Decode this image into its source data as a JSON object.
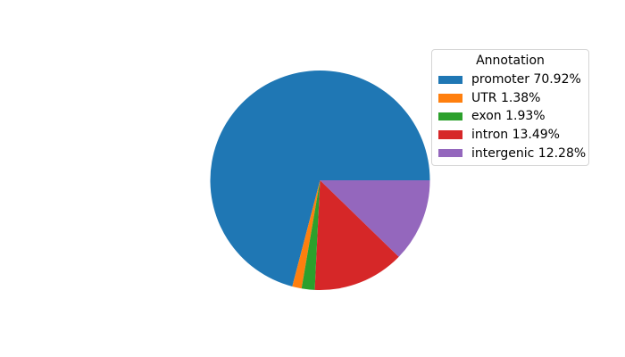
{
  "chart_data": {
    "type": "pie",
    "legend_title": "Annotation",
    "legend_position": "upper right",
    "start_angle": 0,
    "counterclockwise": true,
    "slices": [
      {
        "label": "promoter",
        "pct": 70.92,
        "color": "#1f77b4",
        "legend_label": "promoter 70.92%"
      },
      {
        "label": "UTR",
        "pct": 1.38,
        "color": "#ff7f0e",
        "legend_label": "UTR 1.38%"
      },
      {
        "label": "exon",
        "pct": 1.93,
        "color": "#2ca02c",
        "legend_label": "exon 1.93%"
      },
      {
        "label": "intron",
        "pct": 13.49,
        "color": "#d62728",
        "legend_label": "intron 13.49%"
      },
      {
        "label": "intergenic",
        "pct": 12.28,
        "color": "#9467bd",
        "legend_label": "intergenic 12.28%"
      }
    ]
  }
}
